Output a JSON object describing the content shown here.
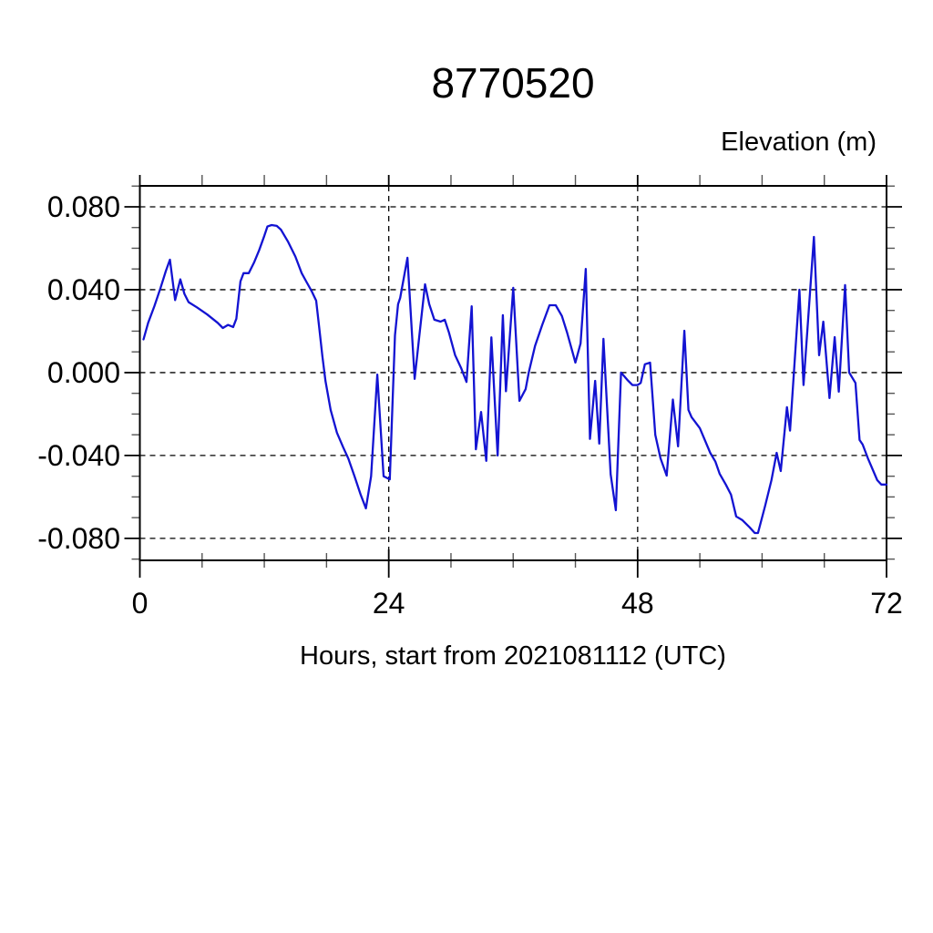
{
  "page_title": "8770520",
  "chart_data": {
    "type": "line",
    "title": "8770520",
    "xlabel": "Hours, start from 2021081112 (UTC)",
    "ylabel": "Elevation (m)",
    "xlim": [
      0,
      72
    ],
    "ylim": [
      -0.0906,
      0.0901
    ],
    "grid": "dashed-at-major-ticks",
    "legend": "none",
    "x_major_ticks": [
      0,
      24,
      48,
      72
    ],
    "x_tick_labels": [
      "0",
      "24",
      "48",
      "72"
    ],
    "x_minor_ticks": [
      6,
      12,
      18,
      30,
      36,
      42,
      54,
      60,
      66
    ],
    "x_gridline_positions": [
      24,
      48
    ],
    "y_major_ticks": [
      0.08,
      0.04,
      0.0,
      -0.04,
      -0.08
    ],
    "y_tick_labels": [
      "0.080",
      "0.040",
      "0.000",
      "-0.040",
      "-0.080"
    ],
    "y_minor_ticks": [
      0.09,
      0.07,
      0.06,
      0.05,
      0.03,
      0.02,
      0.01,
      -0.01,
      -0.02,
      -0.03,
      -0.05,
      -0.06,
      -0.07,
      -0.09
    ],
    "line_color": "#1313d2",
    "series": [
      {
        "name": "elevation",
        "x": [
          0.35,
          0.8,
          1.4,
          2.0,
          2.5,
          2.9,
          3.4,
          3.9,
          4.3,
          4.7,
          5.5,
          6.5,
          7.5,
          8.0,
          8.5,
          9.0,
          9.3,
          9.7,
          10.0,
          10.5,
          11.0,
          11.5,
          12.0,
          12.3,
          12.7,
          13.2,
          13.6,
          14.3,
          15.0,
          15.6,
          16.1,
          16.6,
          17.0,
          17.3,
          17.6,
          17.9,
          18.4,
          19.0,
          19.6,
          20.1,
          20.7,
          21.3,
          21.8,
          22.3,
          22.9,
          23.5,
          24.1,
          24.6,
          24.9,
          25.1,
          25.8,
          26.5,
          27.0,
          27.5,
          27.9,
          28.4,
          29.0,
          29.4,
          29.8,
          30.4,
          31.0,
          31.5,
          32.0,
          32.4,
          32.9,
          33.4,
          33.9,
          34.5,
          35.0,
          35.3,
          36.0,
          36.6,
          37.2,
          37.5,
          38.1,
          38.8,
          39.5,
          40.1,
          40.7,
          41.2,
          41.8,
          42.0,
          42.5,
          43.0,
          43.4,
          43.9,
          44.3,
          44.7,
          45.4,
          45.9,
          46.4,
          47.0,
          47.5,
          48.0,
          48.3,
          48.7,
          49.2,
          49.7,
          50.2,
          50.8,
          51.4,
          51.9,
          52.5,
          52.9,
          53.2,
          54.0,
          55.0,
          55.5,
          55.9,
          56.5,
          57.0,
          57.5,
          58.1,
          58.8,
          59.3,
          59.6,
          60.3,
          60.9,
          61.4,
          61.8,
          62.4,
          62.7,
          63.6,
          64.0,
          65.0,
          65.5,
          65.9,
          66.5,
          67.0,
          67.4,
          68.0,
          68.4,
          69.0,
          69.4,
          69.7,
          70.2,
          71.1,
          71.5,
          72.0
        ],
        "y": [
          0.016,
          0.024,
          0.032,
          0.041,
          0.049,
          0.0545,
          0.035,
          0.045,
          0.038,
          0.034,
          0.0315,
          0.028,
          0.024,
          0.0215,
          0.023,
          0.022,
          0.026,
          0.044,
          0.048,
          0.048,
          0.053,
          0.059,
          0.066,
          0.0705,
          0.0712,
          0.0708,
          0.069,
          0.063,
          0.056,
          0.048,
          0.0435,
          0.039,
          0.0347,
          0.0215,
          0.008,
          -0.004,
          -0.018,
          -0.029,
          -0.036,
          -0.0415,
          -0.05,
          -0.059,
          -0.0655,
          -0.05,
          -0.001,
          -0.05,
          -0.0515,
          0.018,
          0.033,
          0.036,
          0.0554,
          -0.003,
          0.02,
          0.0426,
          0.033,
          0.0255,
          0.0246,
          0.0255,
          0.0194,
          0.0084,
          0.002,
          -0.0045,
          0.032,
          -0.037,
          -0.019,
          -0.0426,
          0.017,
          -0.04,
          0.0277,
          -0.009,
          0.0409,
          -0.0136,
          -0.008,
          0.0,
          0.0128,
          0.023,
          0.0325,
          0.0325,
          0.0273,
          0.0193,
          0.0084,
          0.0048,
          0.0141,
          0.05,
          -0.032,
          -0.004,
          -0.0343,
          0.0163,
          -0.049,
          -0.0664,
          0.0,
          -0.0035,
          -0.006,
          -0.006,
          -0.005,
          0.004,
          0.0048,
          -0.03,
          -0.0413,
          -0.0497,
          -0.013,
          -0.0356,
          0.0202,
          -0.018,
          -0.0215,
          -0.0268,
          -0.0387,
          -0.043,
          -0.0488,
          -0.054,
          -0.0589,
          -0.0694,
          -0.0712,
          -0.0747,
          -0.0774,
          -0.0774,
          -0.0642,
          -0.0519,
          -0.0387,
          -0.0475,
          -0.0167,
          -0.028,
          0.04,
          -0.006,
          0.0655,
          0.0084,
          0.0246,
          -0.0123,
          0.0171,
          -0.0092,
          0.0422,
          0.0,
          -0.005,
          -0.0325,
          -0.0347,
          -0.0413,
          -0.0519,
          -0.054,
          -0.054
        ]
      }
    ]
  },
  "colors": {
    "background": "#ffffff",
    "frame": "#000000",
    "text": "#000000",
    "series": "#1313d2"
  }
}
